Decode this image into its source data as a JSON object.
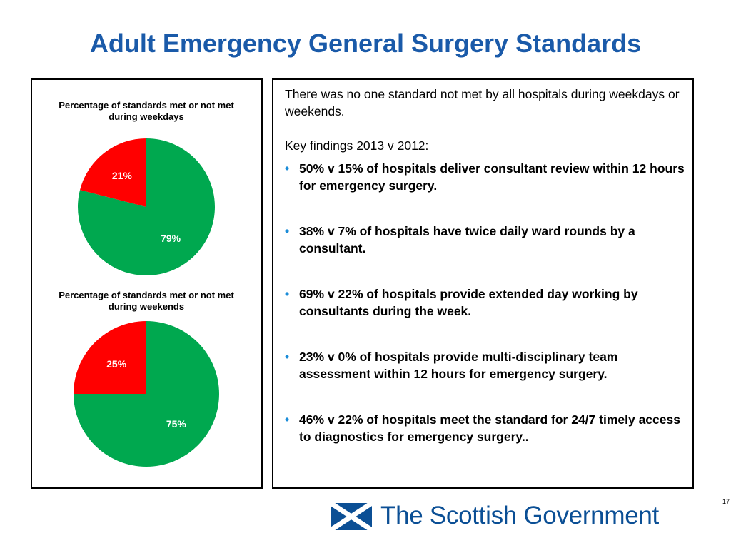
{
  "slide": {
    "title": "Adult Emergency General Surgery Standards",
    "page_number": "17"
  },
  "colors": {
    "met": "#00a84f",
    "not_met": "#ff0000",
    "title": "#1a5aa9",
    "bullet": "#1a8cd8"
  },
  "chart_data": [
    {
      "type": "pie",
      "title": "Percentage of standards met or not met during weekdays",
      "labels": [
        "",
        ""
      ],
      "values": [
        79,
        21
      ],
      "value_labels": [
        "79%",
        "21%"
      ]
    },
    {
      "type": "pie",
      "title": "Percentage of standards met or not met during weekends",
      "labels": [
        "",
        ""
      ],
      "values": [
        75,
        25
      ],
      "value_labels": [
        "75%",
        "25%"
      ]
    }
  ],
  "findings": {
    "intro": "There was no one standard not met by all hospitals during weekdays or weekends.",
    "heading": "Key findings 2013 v 2012:",
    "bullet_symbol": "•",
    "items": [
      "50% v 15% of hospitals deliver consultant review within 12 hours for emergency surgery.",
      "38% v 7% of hospitals have twice daily ward rounds by a consultant.",
      "69% v 22% of hospitals provide extended day working by consultants during the week.",
      "23% v 0% of hospitals provide multi-disciplinary team assessment within 12 hours for emergency surgery.",
      "46% v 22% of hospitals meet the standard for 24/7 timely access to diagnostics for emergency surgery.."
    ]
  },
  "logo": {
    "text": "The Scottish Government",
    "icon": "saltire-flag-icon"
  }
}
